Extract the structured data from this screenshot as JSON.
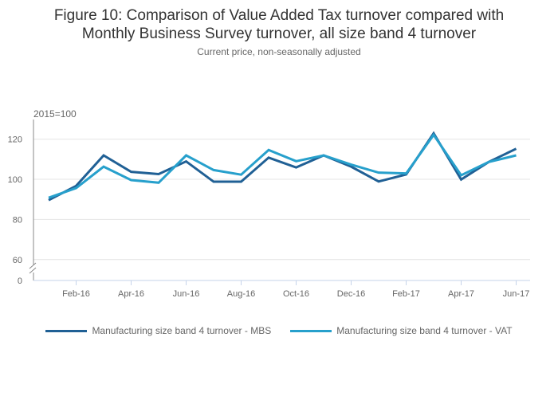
{
  "chart_data": {
    "type": "line",
    "title": "Figure 10: Comparison of Value Added Tax turnover compared with Monthly Business Survey turnover, all size band 4 turnover",
    "title_lines": [
      "Figure 10: Comparison of Value Added Tax turnover compared with",
      "Monthly Business Survey turnover, all size band 4 turnover"
    ],
    "subtitle": "Current price, non-seasonally adjusted",
    "ylabel": "2015=100",
    "xlabel": "",
    "x": [
      "Jan-16",
      "Feb-16",
      "Mar-16",
      "Apr-16",
      "May-16",
      "Jun-16",
      "Jul-16",
      "Aug-16",
      "Sep-16",
      "Oct-16",
      "Nov-16",
      "Dec-16",
      "Jan-17",
      "Feb-17",
      "Mar-17",
      "Apr-17",
      "May-17",
      "Jun-17"
    ],
    "x_tick_labels": [
      "Feb-16",
      "Apr-16",
      "Jun-16",
      "Aug-16",
      "Oct-16",
      "Dec-16",
      "Feb-17",
      "Apr-17",
      "Jun-17"
    ],
    "y_ticks": [
      60,
      80,
      100,
      120
    ],
    "y_break_label": "0",
    "ylim": [
      60,
      130
    ],
    "grid": true,
    "legend_position": "bottom",
    "series": [
      {
        "name": "Manufacturing size band 4 turnover - MBS",
        "color": "#206095",
        "values": [
          89.6,
          96.7,
          111.9,
          103.7,
          102.6,
          108.9,
          98.8,
          98.8,
          110.8,
          105.9,
          111.9,
          106.3,
          98.9,
          102.4,
          122.9,
          99.9,
          108.6,
          115.2
        ]
      },
      {
        "name": "Manufacturing size band 4 turnover - VAT",
        "color": "#27a0cc",
        "values": [
          90.8,
          95.6,
          106.3,
          99.6,
          98.3,
          111.9,
          104.6,
          102.3,
          114.6,
          109.0,
          111.9,
          107.3,
          103.3,
          102.9,
          122.1,
          102.0,
          108.6,
          111.9
        ]
      }
    ]
  }
}
